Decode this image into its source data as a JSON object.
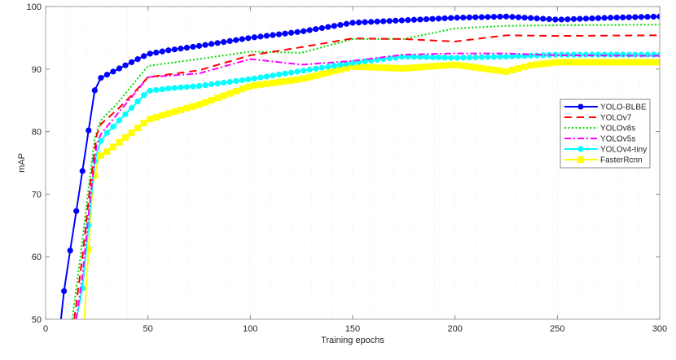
{
  "chart_data": {
    "type": "line",
    "title": "",
    "xlabel": "Training epochs",
    "ylabel": "mAP",
    "xlim": [
      0,
      300
    ],
    "ylim": [
      50,
      100
    ],
    "xticks": [
      0,
      50,
      100,
      150,
      200,
      250,
      300
    ],
    "yticks": [
      50,
      60,
      70,
      80,
      90,
      100
    ],
    "legend_position": "right",
    "series": [
      {
        "name": "YOLO-BLBE",
        "color": "#0000ff",
        "style": "solid",
        "marker": "circle",
        "marker_every": 3,
        "x": [
          7.5,
          9,
          12,
          15,
          18,
          21,
          24,
          27,
          30,
          36,
          42,
          50,
          60,
          75,
          100,
          125,
          150,
          175,
          200,
          225,
          250,
          275,
          300
        ],
        "y": [
          50,
          54.5,
          61,
          67.3,
          73.7,
          80.2,
          86.6,
          88.6,
          89.1,
          90.1,
          91.1,
          92.4,
          93.0,
          93.7,
          95.0,
          96.0,
          97.4,
          97.8,
          98.2,
          98.4,
          97.9,
          98.2,
          98.4
        ]
      },
      {
        "name": "YOLOv7",
        "color": "#ff0000",
        "style": "dashed",
        "marker": "none",
        "x": [
          14,
          18,
          22,
          25,
          27,
          35,
          42,
          50,
          75,
          100,
          125,
          150,
          175,
          200,
          225,
          250,
          300
        ],
        "y": [
          50,
          60,
          72,
          79.5,
          81.2,
          83.5,
          85.8,
          88.7,
          89.8,
          92.2,
          93.5,
          94.9,
          94.8,
          94.4,
          95.4,
          95.3,
          95.4
        ]
      },
      {
        "name": "YOLOv8s",
        "color": "#00e000",
        "style": "dotted",
        "marker": "none",
        "x": [
          13,
          17,
          21,
          24,
          27,
          35,
          42,
          50,
          75,
          100,
          125,
          150,
          175,
          200,
          225,
          250,
          300
        ],
        "y": [
          50,
          60,
          71,
          79,
          81.8,
          84.5,
          87.3,
          90.5,
          91.6,
          92.8,
          92.6,
          94.8,
          94.8,
          96.5,
          96.9,
          97.0,
          97.1
        ]
      },
      {
        "name": "YOLOv5s",
        "color": "#ff00ff",
        "style": "dashdot",
        "marker": "none",
        "x": [
          15,
          18,
          22,
          25,
          27,
          35,
          42,
          50,
          75,
          100,
          125,
          150,
          175,
          200,
          225,
          250,
          300
        ],
        "y": [
          50,
          57,
          70,
          78,
          79.6,
          82.8,
          85.5,
          88.7,
          89.3,
          91.6,
          90.7,
          91.3,
          92.3,
          92.5,
          92.5,
          92.2,
          92.1
        ]
      },
      {
        "name": "YOLOv4-tiny",
        "color": "#00ffff",
        "style": "solid",
        "marker": "circle",
        "marker_every": 3,
        "x": [
          15,
          18,
          21,
          24,
          27,
          30,
          36,
          42,
          50,
          60,
          75,
          100,
          125,
          150,
          175,
          200,
          225,
          250,
          300
        ],
        "y": [
          50,
          55,
          65,
          75.3,
          78.5,
          79.8,
          81.8,
          83.8,
          86.5,
          86.9,
          87.3,
          88.4,
          89.7,
          91.0,
          92.0,
          91.8,
          92.0,
          92.3,
          92.3
        ]
      },
      {
        "name": "FasterRcnn",
        "color": "#ffff00",
        "style": "solid",
        "marker": "square",
        "marker_every": 3,
        "x": [
          19,
          20,
          23,
          26,
          30,
          36,
          42,
          50,
          60,
          75,
          100,
          125,
          150,
          175,
          200,
          225,
          237,
          250,
          300
        ],
        "y": [
          50,
          56,
          71.5,
          76,
          76.8,
          78.3,
          79.8,
          81.9,
          82.9,
          84.3,
          87.3,
          88.4,
          90.4,
          90.1,
          90.7,
          89.6,
          90.6,
          91.1,
          91.1
        ]
      }
    ]
  }
}
